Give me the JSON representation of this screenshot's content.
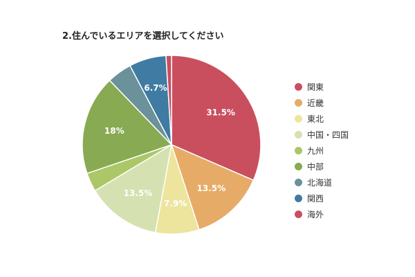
{
  "chart_data": {
    "type": "pie",
    "title": "2.住んでいるエリアを選択してください",
    "categories": [
      "関東",
      "近畿",
      "東北",
      "中国・四国",
      "九州",
      "中部",
      "北海道",
      "関西",
      "海外"
    ],
    "values": [
      31.5,
      13.5,
      7.9,
      13.5,
      3.4,
      18,
      4.5,
      6.7,
      1.0
    ],
    "data_labels": [
      "31.5%",
      "13.5%",
      "7.9%",
      "13.5%",
      "",
      "18%",
      "",
      "6.7%",
      ""
    ],
    "colors": [
      "#c94f5f",
      "#e6ab67",
      "#ede49d",
      "#d5e1b0",
      "#abc768",
      "#88aa52",
      "#6b919b",
      "#3f7ba2",
      "#c94f5f"
    ],
    "legend_position": "right",
    "start_angle_deg": 0,
    "direction": "clockwise"
  }
}
